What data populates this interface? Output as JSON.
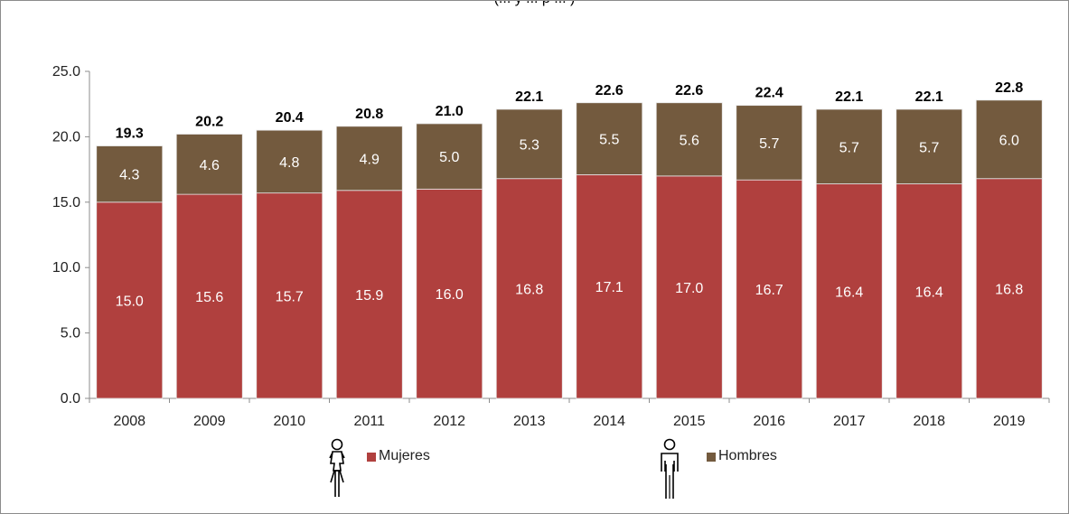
{
  "chart_data": {
    "type": "bar",
    "stacked": true,
    "title": "(... y ... p ... )",
    "categories": [
      "2008",
      "2009",
      "2010",
      "2011",
      "2012",
      "2013",
      "2014",
      "2015",
      "2016",
      "2017",
      "2018",
      "2019"
    ],
    "series": [
      {
        "name": "Mujeres",
        "color": "#b0403e",
        "values": [
          15.0,
          15.6,
          15.7,
          15.9,
          16.0,
          16.8,
          17.1,
          17.0,
          16.7,
          16.4,
          16.4,
          16.8
        ]
      },
      {
        "name": "Hombres",
        "color": "#735a3e",
        "values": [
          4.3,
          4.6,
          4.8,
          4.9,
          5.0,
          5.3,
          5.5,
          5.6,
          5.7,
          5.7,
          5.7,
          6.0
        ]
      }
    ],
    "totals": [
      19.3,
      20.2,
      20.4,
      20.8,
      21.0,
      22.1,
      22.6,
      22.6,
      22.4,
      22.1,
      22.1,
      22.8
    ],
    "ylim": [
      0,
      25
    ],
    "yticks": [
      "0.0",
      "5.0",
      "10.0",
      "15.0",
      "20.0",
      "25.0"
    ],
    "xlabel": "",
    "ylabel": "",
    "grid": false,
    "legend_position": "bottom"
  },
  "legend": {
    "mujeres": {
      "label": "Mujeres",
      "icon": "woman-icon",
      "color": "#b0403e"
    },
    "hombres": {
      "label": "Hombres",
      "icon": "man-icon",
      "color": "#735a3e"
    }
  },
  "colors": {
    "axis": "#8c8c8c",
    "value_label_inside": "#ffffff",
    "total_label": "#000000"
  }
}
